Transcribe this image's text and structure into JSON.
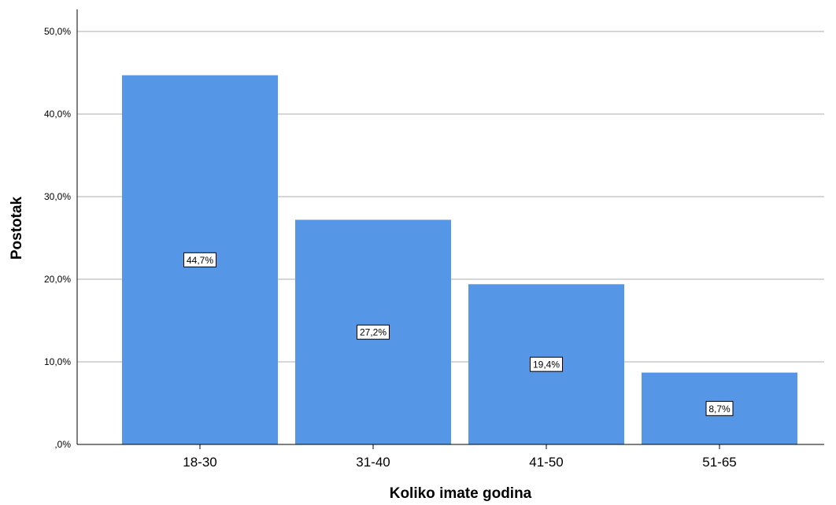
{
  "chart_data": {
    "type": "bar",
    "xlabel": "Koliko imate godina",
    "ylabel": "Postotak",
    "categories": [
      "18-30",
      "31-40",
      "41-50",
      "51-65"
    ],
    "values": [
      44.7,
      27.2,
      19.4,
      8.7
    ],
    "data_labels": [
      "44,7%",
      "27,2%",
      "19,4%",
      "8,7%"
    ],
    "ylim": [
      0,
      50
    ],
    "yticks": [
      0,
      10,
      20,
      30,
      40,
      50
    ],
    "ytick_labels": [
      ",0%",
      "10,0%",
      "20,0%",
      "30,0%",
      "40,0%",
      "50,0%"
    ],
    "grid": true,
    "bar_color": "#5596e6",
    "grid_color": "#c8c8c8"
  }
}
